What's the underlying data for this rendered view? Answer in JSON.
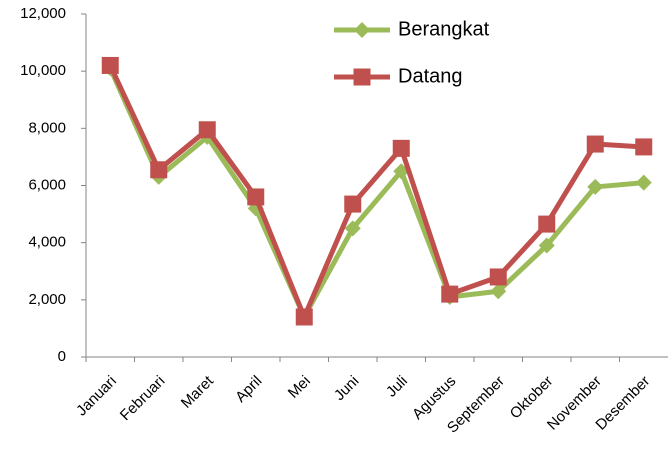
{
  "chart_data": {
    "type": "line",
    "categories": [
      "Januari",
      "Februari",
      "Maret",
      "April",
      "Mei",
      "Juni",
      "Juli",
      "Agustus",
      "September",
      "Oktober",
      "November",
      "Desember"
    ],
    "series": [
      {
        "name": "Berangkat",
        "color": "#9bbb59",
        "marker": "diamond",
        "values": [
          10100,
          6300,
          7700,
          5200,
          1400,
          4500,
          6500,
          2100,
          2300,
          3900,
          5950,
          6100
        ]
      },
      {
        "name": "Datang",
        "color": "#c0504d",
        "marker": "square",
        "values": [
          10200,
          6550,
          7950,
          5600,
          1400,
          5350,
          7300,
          2200,
          2800,
          4650,
          7450,
          7350
        ]
      }
    ],
    "ylim": [
      0,
      12000
    ],
    "yticks": [
      0,
      {
        "value": 2000,
        "label": "2,000"
      },
      {
        "value": 4000,
        "label": "4,000"
      },
      {
        "value": 6000,
        "label": "6,000"
      },
      {
        "value": 8000,
        "label": "8,000"
      },
      {
        "value": 10000,
        "label": "10,000"
      },
      {
        "value": 12000,
        "label": "12,000"
      }
    ],
    "grid": false,
    "legend": "top"
  }
}
